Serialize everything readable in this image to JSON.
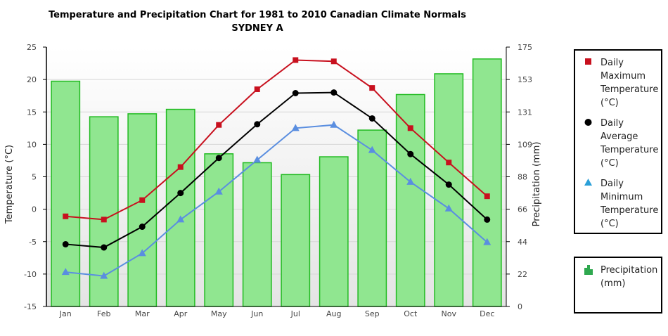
{
  "title_line1": "Temperature and Precipitation Chart for 1981 to 2010 Canadian Climate Normals",
  "title_line2": "SYDNEY A",
  "colors": {
    "max": "#c8101e",
    "avg": "#000000",
    "min": "#5a8ee0",
    "precip_fill": "#90e690",
    "precip_stroke": "#22bb22"
  },
  "chart_data": {
    "type": "bar+line",
    "categories": [
      "Jan",
      "Feb",
      "Mar",
      "Apr",
      "May",
      "Jun",
      "Jul",
      "Aug",
      "Sep",
      "Oct",
      "Nov",
      "Dec"
    ],
    "y_left": {
      "label": "Temperature (°C)",
      "ticks": [
        "25",
        "20",
        "15",
        "10",
        "5",
        "0",
        "-5",
        "-10",
        "-15"
      ],
      "range": [
        -15,
        25
      ]
    },
    "y_right": {
      "label": "Precipitation (mm)",
      "ticks": [
        "175",
        "153",
        "131",
        "109",
        "88",
        "66",
        "44",
        "22",
        "0"
      ],
      "range": [
        0,
        175
      ]
    },
    "series": [
      {
        "name": "Daily Maximum Temperature (°C)",
        "type": "line",
        "axis": "left",
        "marker": "square",
        "values": [
          -1.1,
          -1.6,
          1.4,
          6.5,
          13.0,
          18.5,
          23.0,
          22.8,
          18.7,
          12.5,
          7.2,
          2.0
        ]
      },
      {
        "name": "Daily Average Temperature (°C)",
        "type": "line",
        "axis": "left",
        "marker": "circle",
        "values": [
          -5.4,
          -5.9,
          -2.7,
          2.5,
          7.9,
          13.1,
          17.9,
          18.0,
          14.0,
          8.5,
          3.8,
          -1.6
        ]
      },
      {
        "name": "Daily Minimum Temperature (°C)",
        "type": "line",
        "axis": "left",
        "marker": "triangle",
        "values": [
          -9.7,
          -10.3,
          -6.8,
          -1.6,
          2.7,
          7.6,
          12.5,
          13.0,
          9.1,
          4.2,
          0.1,
          -5.1
        ]
      },
      {
        "name": "Precipitation (mm)",
        "type": "bar",
        "axis": "right",
        "values": [
          152,
          128,
          130,
          133,
          103,
          97,
          89,
          101,
          119,
          143,
          157,
          167
        ]
      }
    ],
    "legend_position": "right"
  },
  "legend": [
    {
      "key": "max",
      "text": "Daily\nMaximum\nTemperature\n(°C)"
    },
    {
      "key": "avg",
      "text": "Daily\nAverage\nTemperature\n(°C)"
    },
    {
      "key": "min",
      "text": "Daily\nMinimum\nTemperature\n(°C)"
    },
    {
      "key": "precip",
      "text": "Precipitation\n(mm)"
    }
  ]
}
